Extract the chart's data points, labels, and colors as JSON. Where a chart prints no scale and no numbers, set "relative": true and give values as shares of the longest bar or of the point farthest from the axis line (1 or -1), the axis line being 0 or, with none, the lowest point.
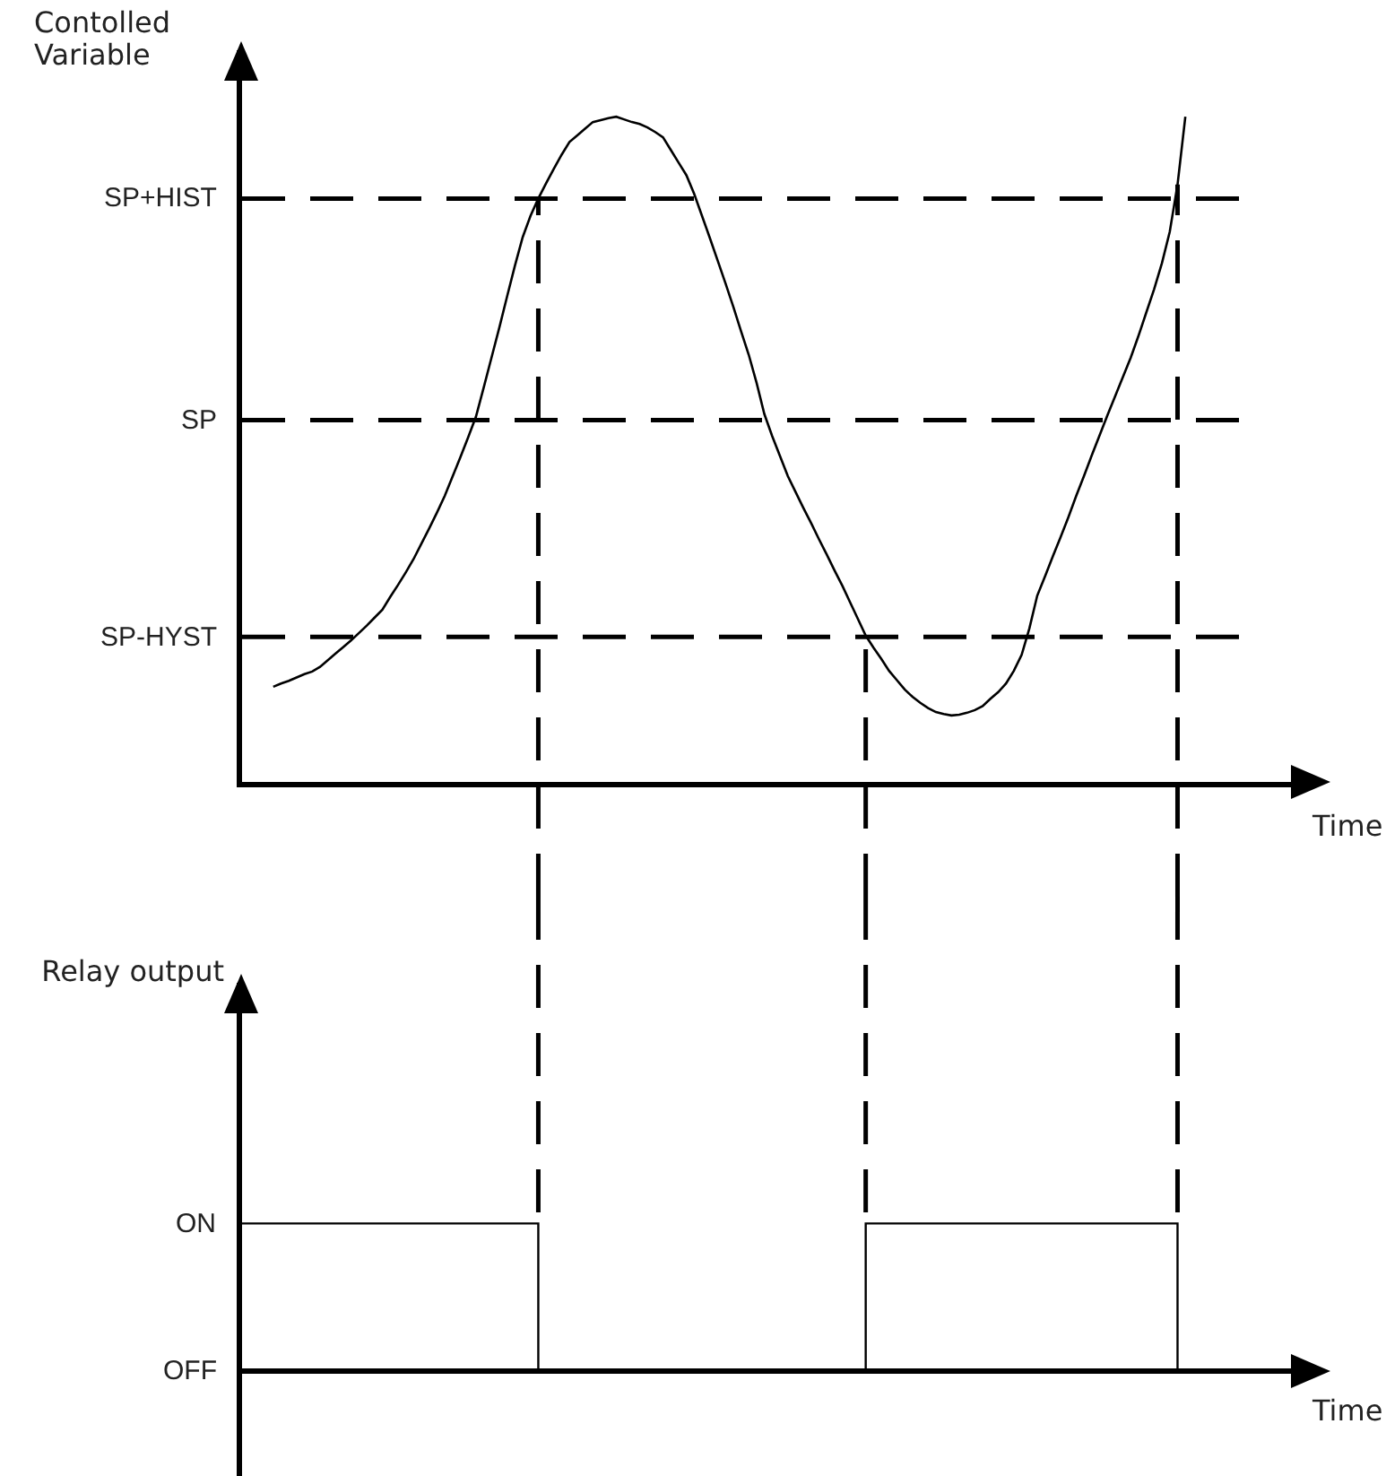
{
  "chart_data": [
    {
      "type": "line",
      "ylabel": "Contolled Variable",
      "xlabel": "Time",
      "relative": true,
      "color": "#000000",
      "categories": [
        null,
        null,
        null,
        null,
        null,
        null,
        null,
        null,
        null,
        null,
        null,
        null,
        null,
        null,
        null,
        null,
        null,
        null,
        null,
        null,
        null,
        null,
        null,
        null,
        null,
        null,
        null,
        null,
        null,
        null,
        null,
        null,
        null,
        null,
        null,
        null,
        null,
        null,
        null,
        null,
        null,
        null,
        null,
        null,
        null,
        null,
        null,
        null,
        null,
        null,
        null,
        null,
        null,
        null,
        null,
        null,
        null,
        null,
        null,
        null,
        null,
        null,
        null,
        null,
        null,
        null,
        null,
        null,
        null,
        null,
        null,
        null,
        null,
        null,
        null,
        null,
        null,
        null,
        null,
        null,
        null,
        null,
        null,
        null,
        null,
        null,
        null,
        null,
        null,
        null,
        null,
        null,
        null,
        null,
        null,
        null,
        null,
        null,
        null,
        null,
        null,
        null,
        null,
        null,
        null,
        null,
        null,
        null,
        null,
        null,
        null,
        null,
        null,
        null,
        null,
        null,
        null,
        null,
        null,
        null,
        null,
        null,
        null,
        null,
        null,
        null,
        null,
        null,
        null,
        null,
        null,
        null,
        null,
        null,
        null,
        null,
        null,
        null,
        null
      ],
      "values": [
        null,
        null,
        null,
        null,
        0.143,
        0.148,
        0.152,
        0.157,
        0.162,
        0.166,
        0.173,
        0.183,
        0.193,
        0.203,
        0.213,
        0.224,
        0.235,
        0.247,
        0.259,
        0.278,
        0.296,
        0.315,
        0.335,
        0.358,
        0.381,
        0.405,
        0.43,
        0.459,
        0.488,
        0.518,
        0.549,
        0.593,
        0.638,
        0.683,
        0.73,
        0.776,
        0.819,
        0.851,
        0.877,
        0.9,
        0.922,
        0.943,
        0.962,
        0.972,
        0.982,
        0.992,
        0.995,
        0.998,
        1.0,
        0.996,
        0.992,
        0.989,
        0.984,
        0.977,
        0.969,
        0.95,
        0.931,
        0.912,
        0.884,
        0.851,
        0.818,
        0.784,
        0.75,
        0.715,
        0.678,
        0.642,
        0.6,
        0.553,
        0.52,
        0.49,
        0.46,
        0.436,
        0.412,
        0.389,
        0.365,
        0.342,
        0.318,
        0.295,
        0.27,
        0.245,
        0.22,
        0.202,
        0.185,
        0.167,
        0.153,
        0.139,
        0.128,
        0.119,
        0.111,
        0.105,
        0.102,
        0.1,
        0.101,
        0.104,
        0.108,
        0.114,
        0.125,
        0.135,
        0.148,
        0.167,
        0.191,
        0.231,
        0.28,
        0.309,
        0.339,
        0.368,
        0.398,
        0.43,
        0.46,
        0.491,
        0.521,
        0.551,
        0.58,
        0.609,
        0.638,
        0.671,
        0.706,
        0.741,
        0.78,
        0.827,
        0.898,
        1.0,
        null,
        null,
        null,
        null,
        null,
        null,
        null,
        null,
        null,
        null,
        null,
        null,
        null,
        null,
        null,
        null,
        null
      ],
      "ref_lines": [
        {
          "axis": "y",
          "value": 0.877,
          "label": "SP+HIST",
          "color": "#000000",
          "line_style": "dashed"
        },
        {
          "axis": "y",
          "value": 0.544,
          "label": "SP",
          "color": "#000000",
          "line_style": "dashed"
        },
        {
          "axis": "y",
          "value": 0.218,
          "label": "SP-HYST",
          "color": "#000000",
          "line_style": "dashed"
        }
      ]
    },
    {
      "type": "step",
      "ylabel": "Relay output",
      "xlabel": "Time",
      "relative": true,
      "color": "#000000",
      "categories": [
        null,
        null,
        null,
        null,
        null,
        null,
        null,
        null,
        null,
        null,
        null,
        null,
        null,
        null,
        null,
        null,
        null,
        null,
        null,
        null,
        null,
        null,
        null,
        null,
        null,
        null,
        null,
        null,
        null,
        null,
        null,
        null,
        null,
        null,
        null,
        null,
        null,
        null,
        null,
        null,
        null,
        null,
        null,
        null,
        null,
        null,
        null,
        null,
        null,
        null,
        null,
        null,
        null,
        null,
        null,
        null,
        null,
        null,
        null,
        null,
        null,
        null,
        null,
        null,
        null,
        null,
        null,
        null,
        null,
        null,
        null,
        null,
        null,
        null,
        null,
        null,
        null,
        null,
        null,
        null,
        null,
        null,
        null,
        null,
        null,
        null,
        null,
        null,
        null,
        null,
        null,
        null,
        null,
        null,
        null,
        null,
        null,
        null,
        null,
        null,
        null,
        null,
        null,
        null,
        null,
        null,
        null,
        null,
        null,
        null,
        null,
        null,
        null,
        null,
        null,
        null,
        null,
        null,
        null,
        null,
        null,
        null,
        null,
        null,
        null,
        null,
        null,
        null,
        null,
        null,
        null,
        null,
        null,
        null,
        null,
        null,
        null,
        null,
        null
      ],
      "values": [
        1,
        1,
        1,
        1,
        1,
        1,
        1,
        1,
        1,
        1,
        1,
        1,
        1,
        1,
        1,
        1,
        1,
        1,
        1,
        1,
        1,
        1,
        1,
        1,
        1,
        1,
        1,
        1,
        1,
        1,
        1,
        1,
        1,
        1,
        1,
        1,
        1,
        1,
        0,
        0,
        0,
        0,
        0,
        0,
        0,
        0,
        0,
        0,
        0,
        0,
        0,
        0,
        0,
        0,
        0,
        0,
        0,
        0,
        0,
        0,
        0,
        0,
        0,
        0,
        0,
        0,
        0,
        0,
        0,
        0,
        0,
        0,
        0,
        0,
        0,
        0,
        0,
        0,
        0,
        0,
        1,
        1,
        1,
        1,
        1,
        1,
        1,
        1,
        1,
        1,
        1,
        1,
        1,
        1,
        1,
        1,
        1,
        1,
        1,
        1,
        1,
        1,
        1,
        1,
        1,
        1,
        1,
        1,
        1,
        1,
        1,
        1,
        1,
        1,
        1,
        1,
        1,
        1,
        1,
        1,
        0,
        0,
        0,
        0,
        0,
        0,
        0,
        0,
        0,
        0,
        0,
        0,
        0,
        0,
        0,
        0,
        0,
        0,
        0
      ],
      "annotations": [
        "ON",
        "OFF"
      ]
    }
  ]
}
